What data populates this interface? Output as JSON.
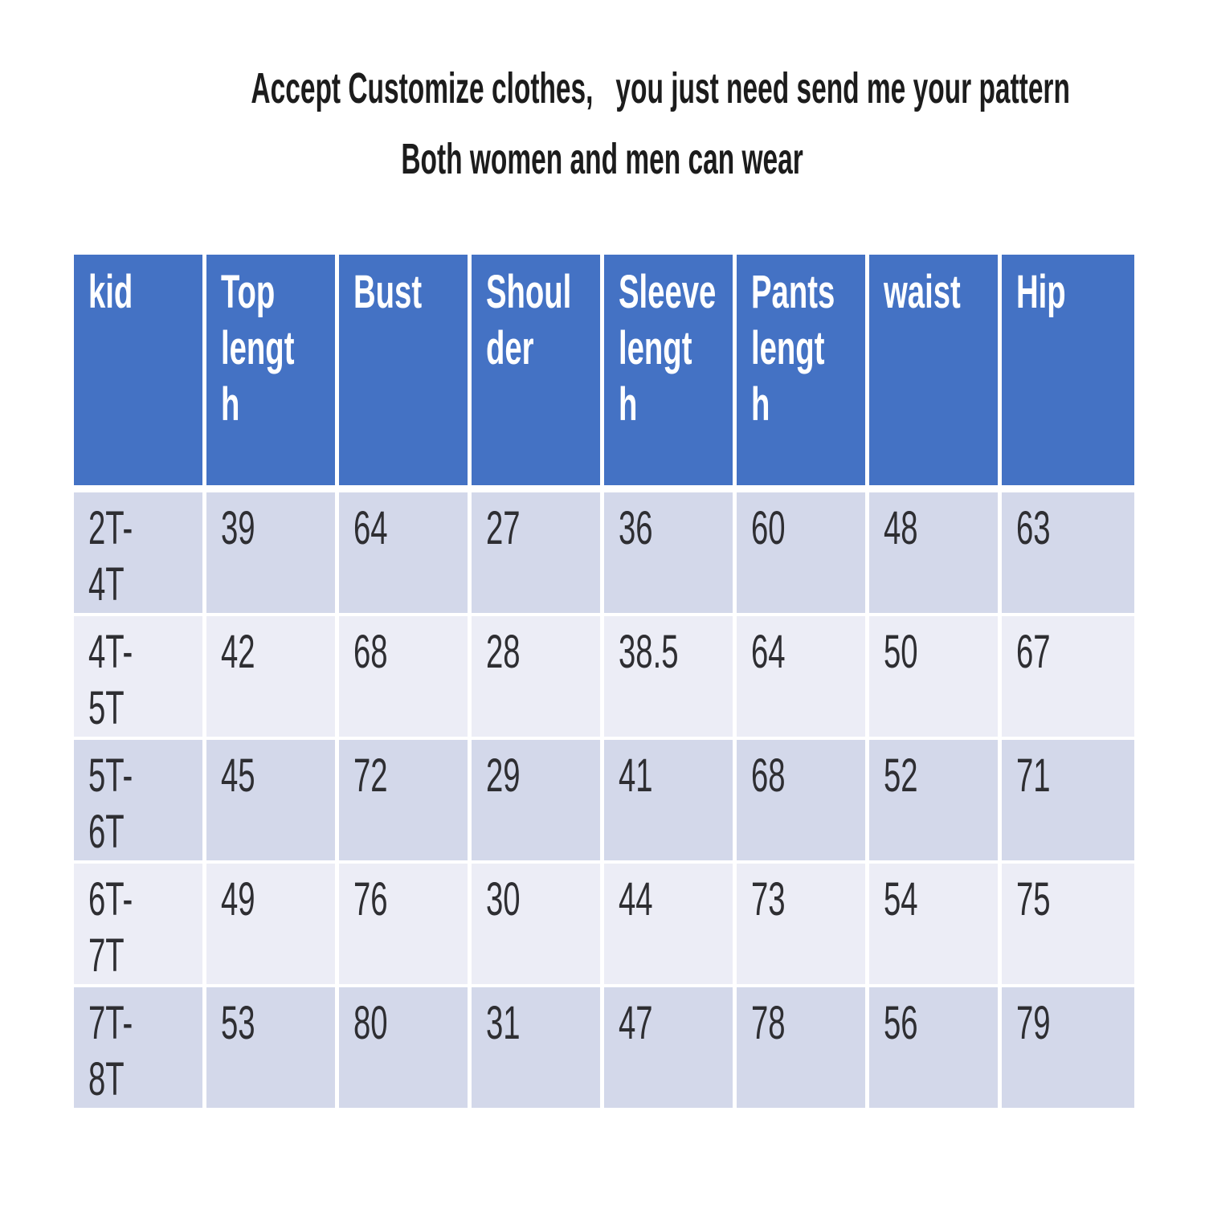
{
  "title": {
    "line1": "Accept Customize clothes,   you just need send me your pattern",
    "line2": "Both women and men can wear"
  },
  "table": {
    "headers": [
      "kid",
      "Top\nlengt\nh",
      "Bust",
      "Shoul\nder",
      "Sleeve\nlengt\nh",
      "Pants\nlengt\nh",
      "waist",
      "Hip"
    ],
    "header_labels_semantic": [
      "kid",
      "Top length",
      "Bust",
      "Shoulder",
      "Sleeve length",
      "Pants length",
      "waist",
      "Hip"
    ],
    "rows": [
      [
        "2T-4T",
        "39",
        "64",
        "27",
        "36",
        "60",
        "48",
        "63"
      ],
      [
        "4T-5T",
        "42",
        "68",
        "28",
        "38.5",
        "64",
        "50",
        "67"
      ],
      [
        "5T-6T",
        "45",
        "72",
        "29",
        "41",
        "68",
        "52",
        "71"
      ],
      [
        "6T-7T",
        "49",
        "76",
        "30",
        "44",
        "73",
        "54",
        "75"
      ],
      [
        "7T-8T",
        "53",
        "80",
        "31",
        "47",
        "78",
        "56",
        "79"
      ]
    ]
  },
  "colors": {
    "header_bg": "#4472c4",
    "header_text": "#ffffff",
    "row_dark": "#d3d8ea",
    "row_light": "#ecedf6",
    "body_text": "#2e2e32",
    "title_text": "#1c1c1c"
  }
}
